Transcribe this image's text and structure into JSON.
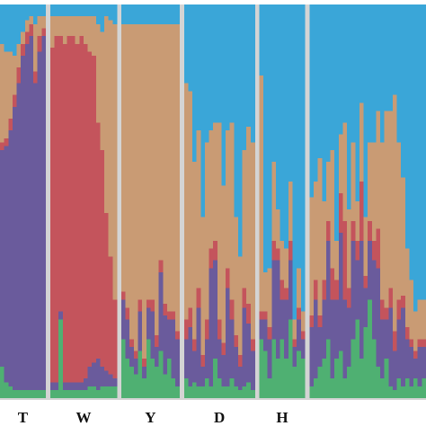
{
  "chart_data": [
    {
      "type": "bar",
      "stacked": true,
      "xlabel": "T",
      "ylim": [
        0,
        100
      ],
      "categories": [
        null,
        null,
        null,
        null,
        null,
        null,
        null,
        null,
        null,
        null,
        null
      ],
      "series": [
        {
          "color": "#4fb072",
          "values": [
            8,
            4,
            3,
            2,
            2,
            2,
            2,
            2,
            2,
            2,
            2
          ]
        },
        {
          "color": "#6a5b9c",
          "values": [
            55,
            60,
            65,
            72,
            78,
            85,
            88,
            90,
            78,
            86,
            90
          ]
        },
        {
          "color": "#c4545c",
          "values": [
            2,
            2,
            3,
            3,
            4,
            3,
            3,
            3,
            3,
            4,
            2
          ]
        },
        {
          "color": "#c99b74",
          "values": [
            25,
            22,
            17,
            10,
            6,
            3,
            3,
            2,
            12,
            5,
            3
          ]
        },
        {
          "color": "#3aa6d8",
          "values": [
            10,
            12,
            12,
            13,
            10,
            7,
            4,
            3,
            5,
            3,
            3
          ]
        }
      ]
    },
    {
      "type": "bar",
      "stacked": true,
      "xlabel": "W",
      "ylim": [
        0,
        100
      ],
      "categories": [
        null,
        null,
        null,
        null,
        null,
        null,
        null,
        null,
        null,
        null,
        null,
        null,
        null,
        null,
        null,
        null
      ],
      "series": [
        {
          "color": "#4fb072",
          "values": [
            2,
            2,
            20,
            2,
            2,
            2,
            2,
            2,
            2,
            3,
            3,
            2,
            3,
            3,
            3,
            3
          ]
        },
        {
          "color": "#6a5b9c",
          "values": [
            2,
            2,
            2,
            2,
            2,
            2,
            2,
            2,
            3,
            5,
            6,
            8,
            5,
            4,
            3,
            2
          ]
        },
        {
          "color": "#c4545c",
          "values": [
            85,
            88,
            70,
            86,
            88,
            88,
            86,
            88,
            85,
            80,
            78,
            60,
            55,
            40,
            30,
            20
          ]
        },
        {
          "color": "#c99b74",
          "values": [
            8,
            5,
            5,
            7,
            5,
            5,
            7,
            5,
            7,
            9,
            10,
            25,
            30,
            50,
            60,
            70
          ]
        },
        {
          "color": "#3aa6d8",
          "values": [
            3,
            3,
            3,
            3,
            3,
            3,
            3,
            3,
            3,
            3,
            3,
            5,
            7,
            3,
            4,
            5
          ]
        }
      ]
    },
    {
      "type": "bar",
      "stacked": true,
      "xlabel": "Y",
      "ylim": [
        0,
        100
      ],
      "categories": [
        null,
        null,
        null,
        null,
        null,
        null,
        null,
        null,
        null,
        null,
        null,
        null,
        null,
        null
      ],
      "series": [
        {
          "color": "#4fb072",
          "values": [
            15,
            10,
            8,
            6,
            12,
            5,
            15,
            10,
            8,
            12,
            6,
            10,
            5,
            3
          ]
        },
        {
          "color": "#6a5b9c",
          "values": [
            10,
            10,
            5,
            4,
            10,
            3,
            8,
            12,
            5,
            20,
            15,
            10,
            15,
            12
          ]
        },
        {
          "color": "#c4545c",
          "values": [
            2,
            3,
            2,
            2,
            3,
            2,
            2,
            3,
            3,
            3,
            3,
            2,
            2,
            2
          ]
        },
        {
          "color": "#c99b74",
          "values": [
            68,
            72,
            80,
            83,
            70,
            85,
            70,
            70,
            79,
            60,
            71,
            73,
            73,
            78
          ]
        },
        {
          "color": "#3aa6d8",
          "values": [
            5,
            5,
            5,
            5,
            5,
            5,
            5,
            5,
            5,
            5,
            5,
            5,
            5,
            5
          ]
        }
      ]
    },
    {
      "type": "bar",
      "stacked": true,
      "xlabel": "D",
      "ylim": [
        0,
        100
      ],
      "categories": [
        null,
        null,
        null,
        null,
        null,
        null,
        null,
        null,
        null,
        null,
        null,
        null,
        null,
        null,
        null,
        null,
        null
      ],
      "series": [
        {
          "color": "#4fb072",
          "values": [
            5,
            3,
            4,
            3,
            3,
            5,
            3,
            10,
            5,
            3,
            3,
            5,
            3,
            2,
            3,
            4,
            2
          ]
        },
        {
          "color": "#6a5b9c",
          "values": [
            10,
            15,
            8,
            20,
            5,
            10,
            30,
            25,
            10,
            8,
            25,
            15,
            10,
            6,
            20,
            15,
            10
          ]
        },
        {
          "color": "#c4545c",
          "values": [
            5,
            5,
            3,
            5,
            3,
            5,
            5,
            5,
            5,
            3,
            5,
            5,
            3,
            3,
            5,
            5,
            3
          ]
        },
        {
          "color": "#c99b74",
          "values": [
            60,
            55,
            45,
            40,
            35,
            45,
            30,
            30,
            50,
            40,
            35,
            45,
            30,
            25,
            35,
            45,
            50
          ]
        },
        {
          "color": "#3aa6d8",
          "values": [
            20,
            22,
            40,
            32,
            54,
            35,
            32,
            30,
            30,
            46,
            32,
            30,
            54,
            64,
            37,
            31,
            35
          ]
        }
      ]
    },
    {
      "type": "bar",
      "stacked": true,
      "xlabel": "H",
      "ylim": [
        0,
        100
      ],
      "categories": [
        null,
        null,
        null,
        null,
        null,
        null,
        null,
        null,
        null,
        null,
        null
      ],
      "series": [
        {
          "color": "#4fb072",
          "values": [
            15,
            12,
            5,
            15,
            10,
            15,
            10,
            20,
            8,
            12,
            10
          ]
        },
        {
          "color": "#6a5b9c",
          "values": [
            5,
            8,
            10,
            20,
            25,
            10,
            15,
            15,
            5,
            8,
            5
          ]
        },
        {
          "color": "#c4545c",
          "values": [
            2,
            2,
            3,
            5,
            3,
            5,
            3,
            5,
            2,
            3,
            2
          ]
        },
        {
          "color": "#c99b74",
          "values": [
            60,
            10,
            15,
            20,
            10,
            10,
            10,
            15,
            5,
            10,
            5
          ]
        },
        {
          "color": "#3aa6d8",
          "values": [
            18,
            68,
            67,
            40,
            52,
            60,
            62,
            45,
            80,
            67,
            78
          ]
        }
      ]
    },
    {
      "type": "bar",
      "stacked": true,
      "ylim": [
        0,
        100
      ],
      "categories": [
        null,
        null,
        null,
        null,
        null,
        null,
        null,
        null,
        null,
        null,
        null,
        null,
        null,
        null,
        null,
        null,
        null,
        null,
        null,
        null,
        null,
        null,
        null,
        null,
        null,
        null,
        null,
        null
      ],
      "series": [
        {
          "color": "#4fb072",
          "values": [
            3,
            5,
            8,
            10,
            15,
            5,
            10,
            12,
            5,
            8,
            15,
            20,
            10,
            18,
            25,
            15,
            8,
            5,
            10,
            3,
            2,
            5,
            3,
            5,
            3,
            5,
            3,
            5
          ]
        },
        {
          "color": "#6a5b9c",
          "values": [
            15,
            20,
            10,
            15,
            25,
            20,
            15,
            30,
            20,
            15,
            25,
            15,
            30,
            10,
            15,
            20,
            25,
            15,
            10,
            20,
            10,
            15,
            20,
            10,
            10,
            5,
            10,
            8
          ]
        },
        {
          "color": "#c4545c",
          "values": [
            3,
            5,
            3,
            5,
            5,
            8,
            5,
            10,
            20,
            5,
            5,
            5,
            15,
            3,
            5,
            5,
            10,
            5,
            3,
            5,
            5,
            5,
            3,
            3,
            2,
            2,
            2,
            2
          ]
        },
        {
          "color": "#c99b74",
          "values": [
            30,
            25,
            40,
            20,
            15,
            30,
            10,
            15,
            25,
            20,
            20,
            10,
            20,
            15,
            20,
            25,
            30,
            40,
            50,
            45,
            60,
            40,
            30,
            20,
            15,
            10,
            10,
            10
          ]
        },
        {
          "color": "#3aa6d8",
          "values": [
            49,
            45,
            39,
            50,
            40,
            37,
            60,
            33,
            30,
            52,
            35,
            50,
            25,
            54,
            35,
            35,
            27,
            35,
            27,
            27,
            23,
            35,
            44,
            62,
            70,
            78,
            75,
            75
          ]
        }
      ]
    }
  ]
}
